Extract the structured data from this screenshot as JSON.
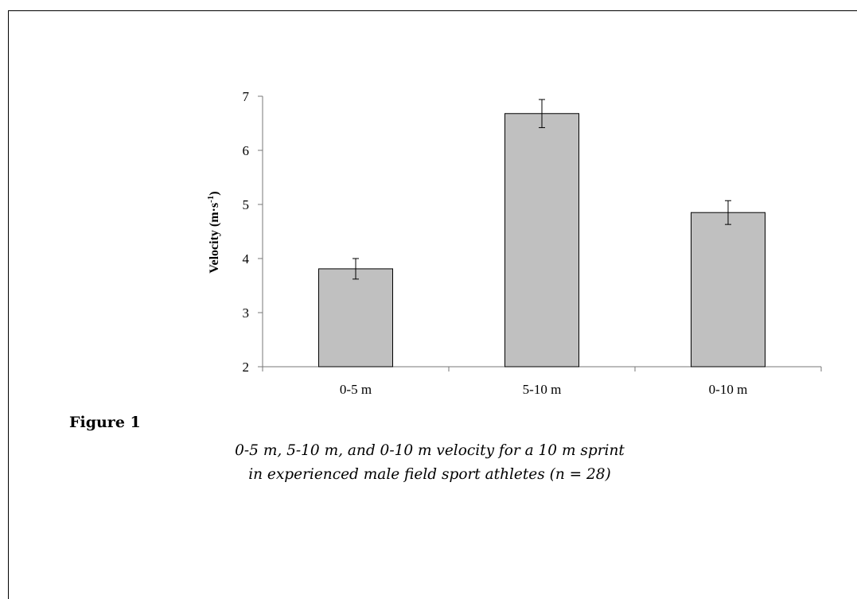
{
  "figure": {
    "label": "Figure 1",
    "caption_line1": "0-5 m, 5-10 m, and 0-10 m velocity for a 10 m sprint",
    "caption_line2": "in experienced male field sport athletes (n = 28)"
  },
  "chart_data": {
    "type": "bar",
    "title": "",
    "xlabel": "",
    "ylabel": "Velocity (m·s",
    "ylabel_superscript": "-1",
    "ylabel_suffix": ")",
    "categories": [
      "0-5 m",
      "5-10 m",
      "0-10 m"
    ],
    "values": [
      3.81,
      6.68,
      4.85
    ],
    "error": [
      0.19,
      0.26,
      0.22
    ],
    "ylim": [
      2,
      7
    ],
    "yticks": [
      2,
      3,
      4,
      5,
      6,
      7
    ],
    "grid": false,
    "legend": "none",
    "bar_color": "#c0c0c0",
    "bar_edge_color": "#000000"
  }
}
